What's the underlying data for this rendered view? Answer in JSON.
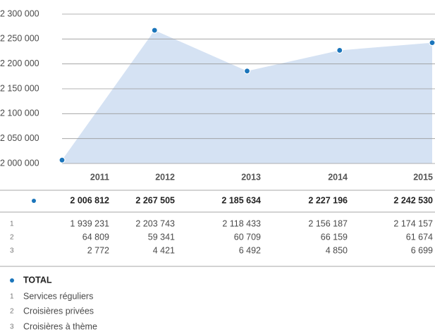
{
  "chart_data": {
    "type": "area",
    "categories": [
      "2011",
      "2012",
      "2013",
      "2014",
      "2015"
    ],
    "ylim": [
      2000000,
      2300000
    ],
    "yticks": [
      {
        "value": 2000000,
        "label": "2 000 000"
      },
      {
        "value": 2050000,
        "label": "2 050 000"
      },
      {
        "value": 2100000,
        "label": "2 100 000"
      },
      {
        "value": 2150000,
        "label": "2 150 000"
      },
      {
        "value": 2200000,
        "label": "2 200 000"
      },
      {
        "value": 2250000,
        "label": "2 250 000"
      },
      {
        "value": 2300000,
        "label": "2 300 000"
      }
    ],
    "grid": true,
    "area_color": "#d5e2f3",
    "series": [
      {
        "name": "TOTAL",
        "marker": "dot",
        "color": "#1b75bb",
        "values": [
          2006812,
          2267505,
          2185634,
          2227196,
          2242530
        ],
        "value_labels": [
          "2 006 812",
          "2 267 505",
          "2 185 634",
          "2 227 196",
          "2 242 530"
        ]
      },
      {
        "name": "Services réguliers",
        "key": "1",
        "values": [
          1939231,
          2203743,
          2118433,
          2156187,
          2174157
        ],
        "value_labels": [
          "1 939 231",
          "2 203 743",
          "2 118 433",
          "2 156 187",
          "2 174 157"
        ]
      },
      {
        "name": "Croisières privées",
        "key": "2",
        "values": [
          64809,
          59341,
          60709,
          66159,
          61674
        ],
        "value_labels": [
          "64 809",
          "59 341",
          "60 709",
          "66 159",
          "61 674"
        ]
      },
      {
        "name": "Croisières à thème",
        "key": "3",
        "values": [
          2772,
          4421,
          6492,
          4850,
          6699
        ],
        "value_labels": [
          "2 772",
          "4 421",
          "6 492",
          "4 850",
          "6 699"
        ]
      }
    ]
  }
}
